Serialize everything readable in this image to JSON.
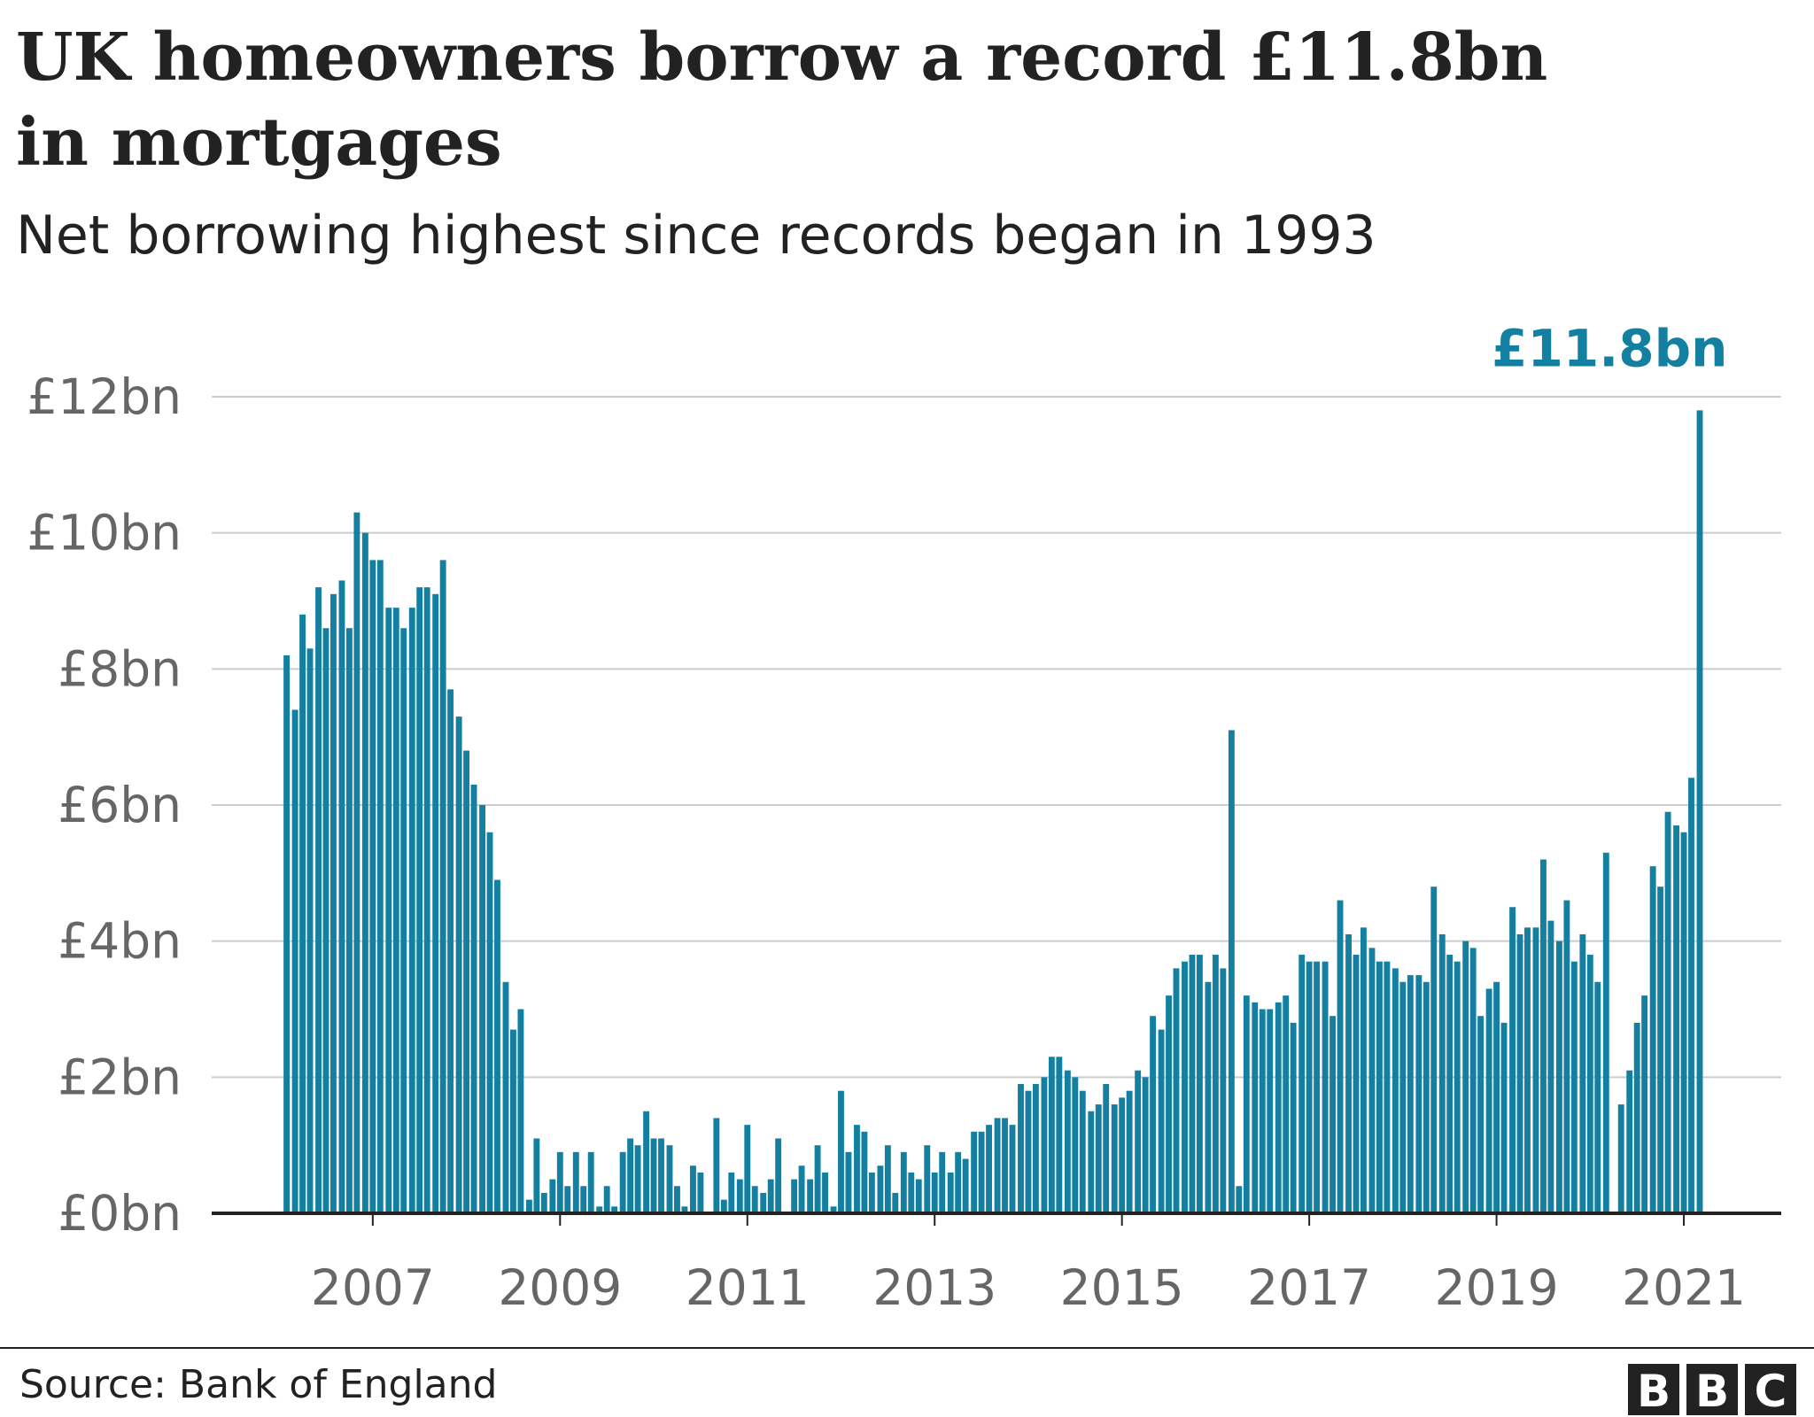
{
  "chart_data": {
    "type": "bar",
    "title": [
      "UK homeowners borrow a record £11.8bn",
      "in mortgages"
    ],
    "subtitle": "Net borrowing highest since records began in 1993",
    "annotation": "£11.8bn",
    "source": "Source: Bank of England",
    "logo": [
      "B",
      "B",
      "C"
    ],
    "color": "#1380a1",
    "grid": true,
    "x": [
      2006.08,
      2006.17,
      2006.25,
      2006.33,
      2006.42,
      2006.5,
      2006.58,
      2006.67,
      2006.75,
      2006.83,
      2006.92,
      2007,
      2007.08,
      2007.17,
      2007.25,
      2007.33,
      2007.42,
      2007.5,
      2007.58,
      2007.67,
      2007.75,
      2007.83,
      2007.92,
      2008,
      2008.08,
      2008.17,
      2008.25,
      2008.33,
      2008.42,
      2008.5,
      2008.58,
      2008.67,
      2008.75,
      2008.83,
      2008.92,
      2009,
      2009.08,
      2009.17,
      2009.25,
      2009.33,
      2009.42,
      2009.5,
      2009.58,
      2009.67,
      2009.75,
      2009.83,
      2009.92,
      2010,
      2010.08,
      2010.17,
      2010.25,
      2010.33,
      2010.42,
      2010.5,
      2010.58,
      2010.67,
      2010.75,
      2010.83,
      2010.92,
      2011,
      2011.08,
      2011.17,
      2011.25,
      2011.33,
      2011.42,
      2011.5,
      2011.58,
      2011.67,
      2011.75,
      2011.83,
      2011.92,
      2012,
      2012.08,
      2012.17,
      2012.25,
      2012.33,
      2012.42,
      2012.5,
      2012.58,
      2012.67,
      2012.75,
      2012.83,
      2012.92,
      2013,
      2013.08,
      2013.17,
      2013.25,
      2013.33,
      2013.42,
      2013.5,
      2013.58,
      2013.67,
      2013.75,
      2013.83,
      2013.92,
      2014,
      2014.08,
      2014.17,
      2014.25,
      2014.33,
      2014.42,
      2014.5,
      2014.58,
      2014.67,
      2014.75,
      2014.83,
      2014.92,
      2015,
      2015.08,
      2015.17,
      2015.25,
      2015.33,
      2015.42,
      2015.5,
      2015.58,
      2015.67,
      2015.75,
      2015.83,
      2015.92,
      2016,
      2016.08,
      2016.17,
      2016.25,
      2016.33,
      2016.42,
      2016.5,
      2016.58,
      2016.67,
      2016.75,
      2016.83,
      2016.92,
      2017,
      2017.08,
      2017.17,
      2017.25,
      2017.33,
      2017.42,
      2017.5,
      2017.58,
      2017.67,
      2017.75,
      2017.83,
      2017.92,
      2018,
      2018.08,
      2018.17,
      2018.25,
      2018.33,
      2018.42,
      2018.5,
      2018.58,
      2018.67,
      2018.75,
      2018.83,
      2018.92,
      2019,
      2019.08,
      2019.17,
      2019.25,
      2019.33,
      2019.42,
      2019.5,
      2019.58,
      2019.67,
      2019.75,
      2019.83,
      2019.92,
      2020,
      2020.08,
      2020.17,
      2020.25,
      2020.33,
      2020.42,
      2020.5,
      2020.58,
      2020.67,
      2020.75,
      2020.83,
      2020.92,
      2021,
      2021.08,
      2021.17
    ],
    "values": [
      8.2,
      7.4,
      8.8,
      8.3,
      9.2,
      8.6,
      9.1,
      9.3,
      8.6,
      10.3,
      10.0,
      9.6,
      9.6,
      8.9,
      8.9,
      8.6,
      8.9,
      9.2,
      9.2,
      9.1,
      9.6,
      7.7,
      7.3,
      6.8,
      6.3,
      6.0,
      5.6,
      4.9,
      3.4,
      2.7,
      3.0,
      0.2,
      1.1,
      0.3,
      0.5,
      0.9,
      0.4,
      0.9,
      0.4,
      0.9,
      0.1,
      0.4,
      0.1,
      0.9,
      1.1,
      1.0,
      1.5,
      1.1,
      1.1,
      1.0,
      0.4,
      0.1,
      0.7,
      0.6,
      0.0,
      1.4,
      0.2,
      0.6,
      0.5,
      1.3,
      0.4,
      0.3,
      0.5,
      1.1,
      0.0,
      0.5,
      0.7,
      0.5,
      1.0,
      0.6,
      0.1,
      1.8,
      0.9,
      1.3,
      1.2,
      0.6,
      0.7,
      1.0,
      0.3,
      0.9,
      0.6,
      0.5,
      1.0,
      0.6,
      0.9,
      0.6,
      0.9,
      0.8,
      1.2,
      1.2,
      1.3,
      1.4,
      1.4,
      1.3,
      1.9,
      1.8,
      1.9,
      2.0,
      2.3,
      2.3,
      2.1,
      2.0,
      1.8,
      1.5,
      1.6,
      1.9,
      1.6,
      1.7,
      1.8,
      2.1,
      2.0,
      2.9,
      2.7,
      3.2,
      3.6,
      3.7,
      3.8,
      3.8,
      3.4,
      3.8,
      3.6,
      7.1,
      0.4,
      3.2,
      3.1,
      3.0,
      3.0,
      3.1,
      3.2,
      2.8,
      3.8,
      3.7,
      3.7,
      3.7,
      2.9,
      4.6,
      4.1,
      3.8,
      4.2,
      3.9,
      3.7,
      3.7,
      3.6,
      3.4,
      3.5,
      3.5,
      3.4,
      4.8,
      4.1,
      3.8,
      3.7,
      4.0,
      3.9,
      2.9,
      3.3,
      3.4,
      2.8,
      4.5,
      4.1,
      4.2,
      4.2,
      5.2,
      4.3,
      4.0,
      4.6,
      3.7,
      4.1,
      3.8,
      3.4,
      5.3,
      0.0,
      1.6,
      2.1,
      2.8,
      3.2,
      5.1,
      4.8,
      5.9,
      5.7,
      5.6,
      6.4,
      11.8
    ],
    "xlim": [
      2005.28,
      2022.04
    ],
    "xticks": [
      2007,
      2009,
      2011,
      2013,
      2015,
      2017,
      2019,
      2021
    ],
    "ylim": [
      0,
      12
    ],
    "yticks": [
      {
        "value": 0,
        "label": "£0bn"
      },
      {
        "value": 2,
        "label": "£2bn"
      },
      {
        "value": 4,
        "label": "£4bn"
      },
      {
        "value": 6,
        "label": "£6bn"
      },
      {
        "value": 8,
        "label": "£8bn"
      },
      {
        "value": 10,
        "label": "£10bn"
      },
      {
        "value": 12,
        "label": "£12bn"
      }
    ]
  }
}
